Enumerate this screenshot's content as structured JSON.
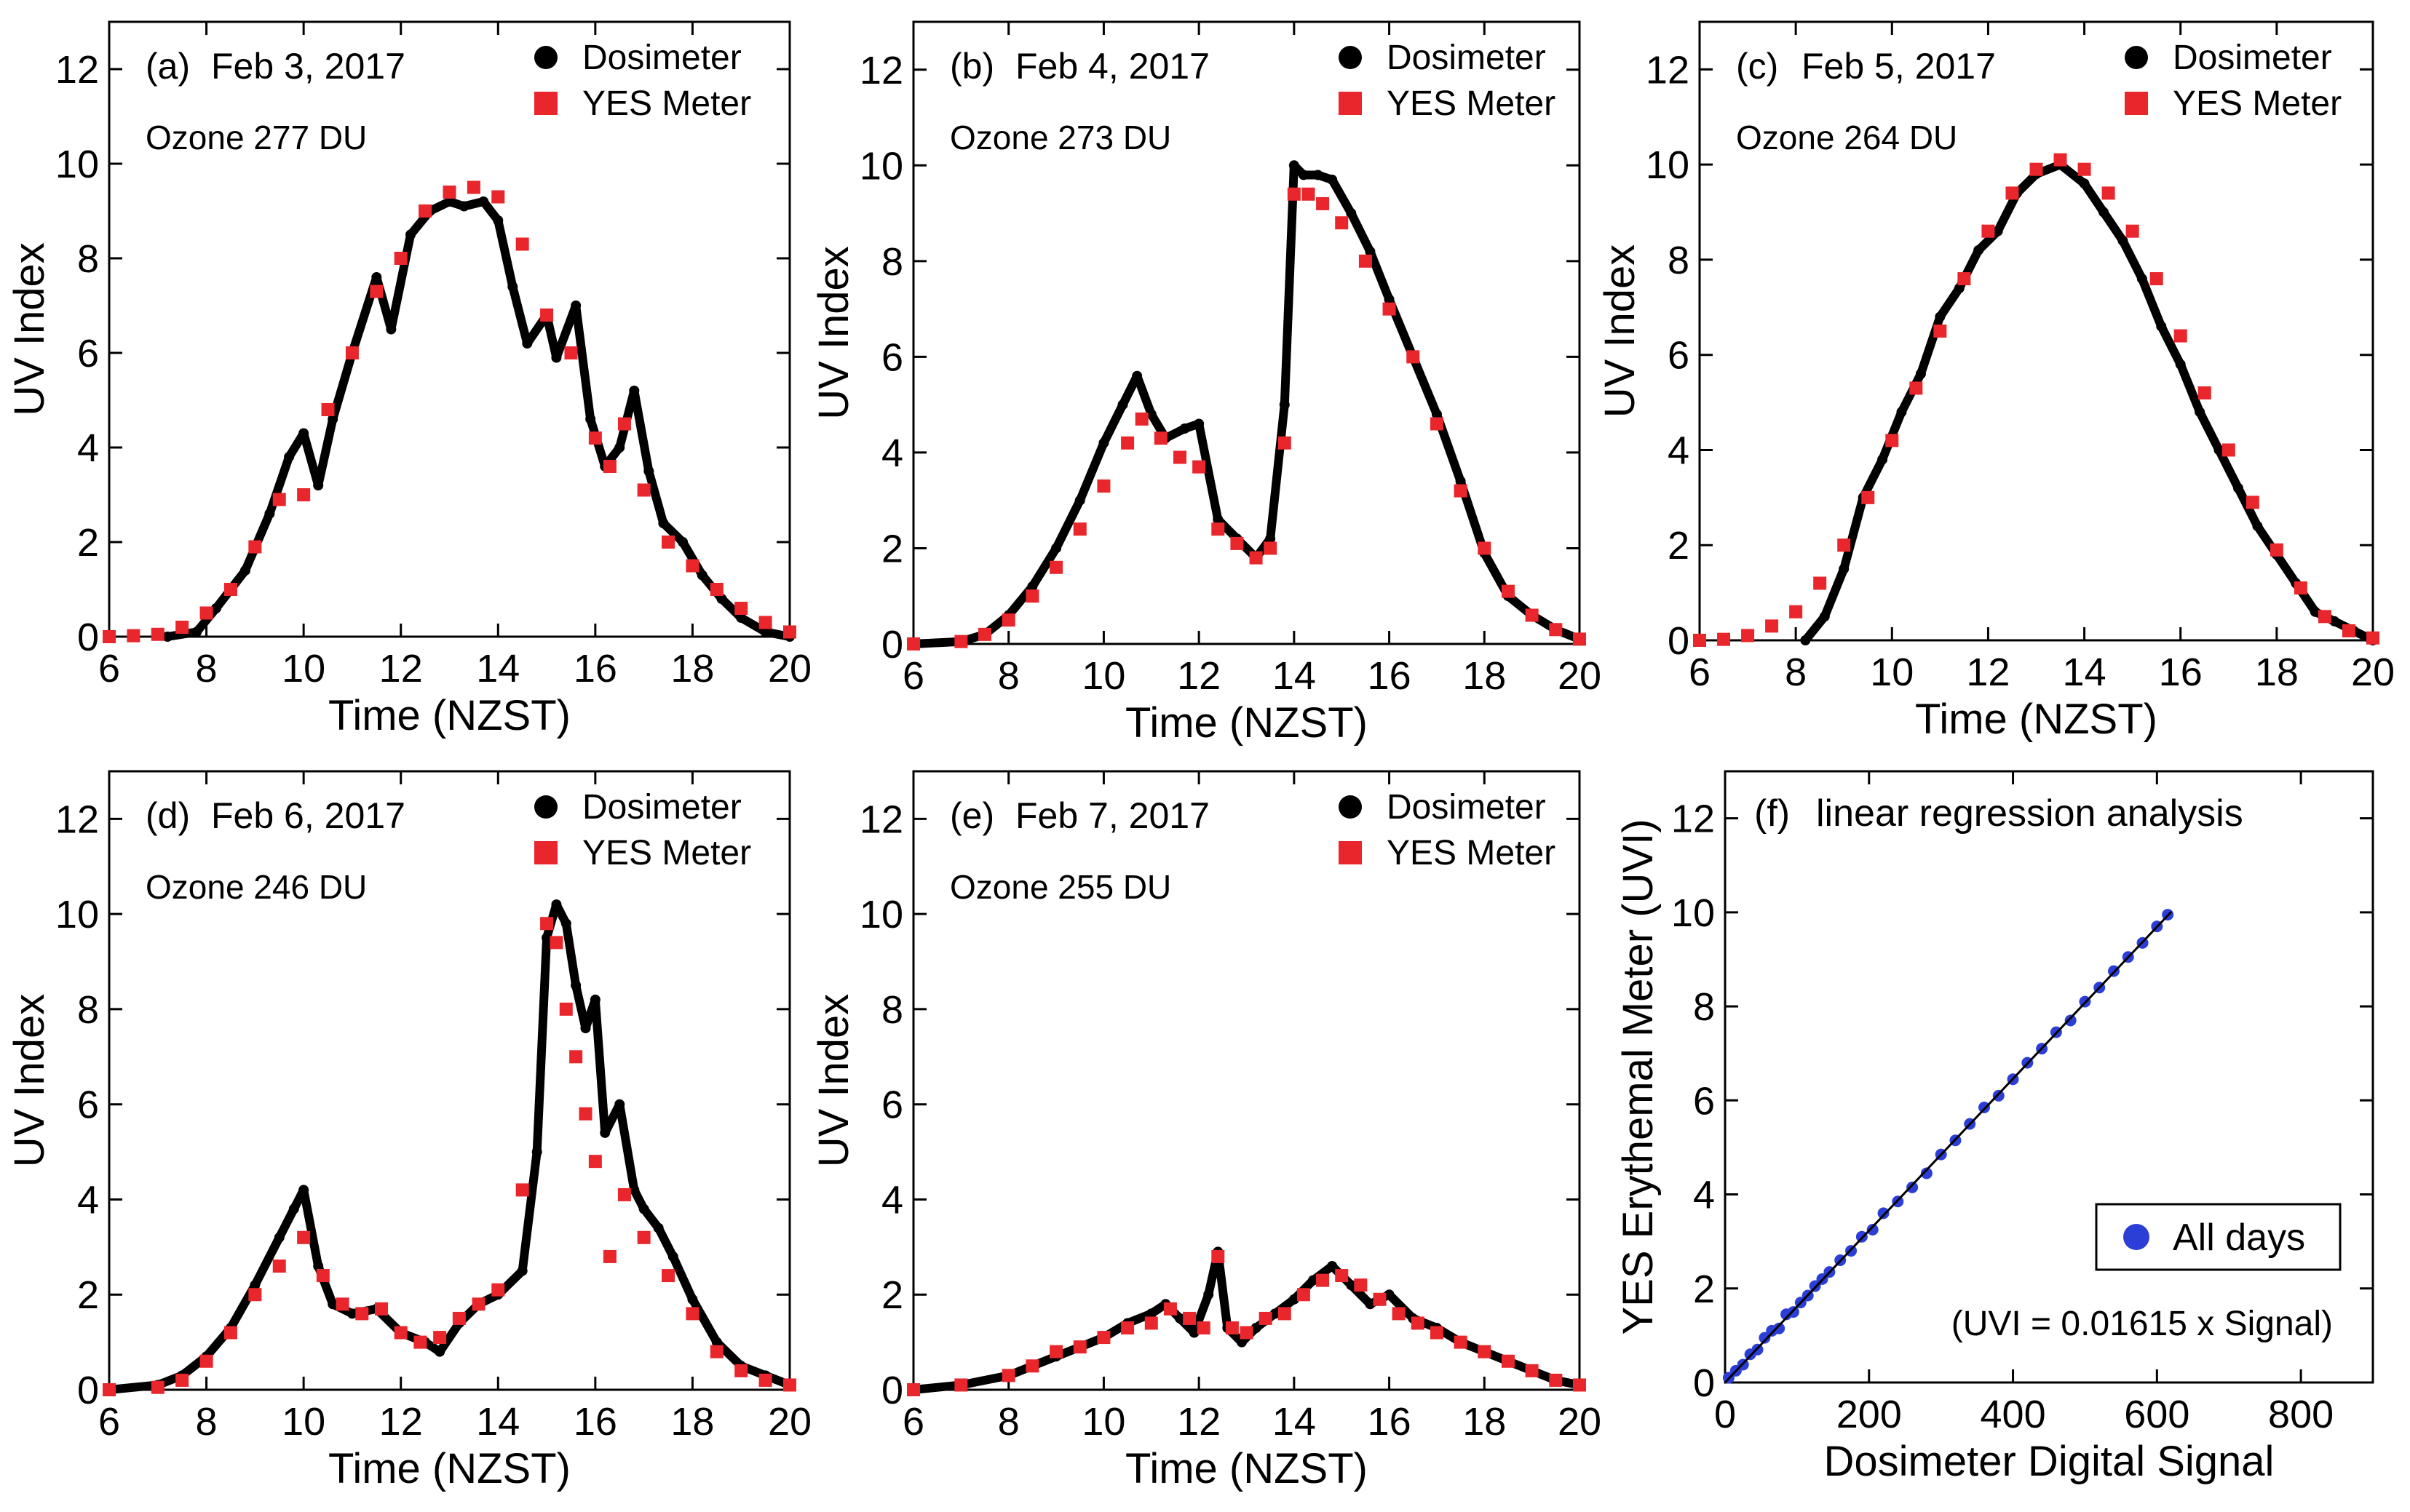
{
  "chart_data": [
    {
      "type": "scatter",
      "panel_label": "(a)",
      "date": "Feb 3, 2017",
      "ozone": "Ozone 277 DU",
      "xlabel": "Time (NZST)",
      "ylabel": "UV Index",
      "xlim": [
        6,
        20
      ],
      "ylim": [
        0,
        13
      ],
      "xticks": [
        6,
        8,
        10,
        12,
        14,
        16,
        18,
        20
      ],
      "yticks": [
        0,
        2,
        4,
        6,
        8,
        10,
        12
      ],
      "legend": [
        "Dosimeter",
        "YES Meter"
      ],
      "series": [
        {
          "name": "Dosimeter",
          "x": [
            7.2,
            7.8,
            8.2,
            8.8,
            9.3,
            9.7,
            10.0,
            10.3,
            10.6,
            11.0,
            11.5,
            11.8,
            12.2,
            12.6,
            13.0,
            13.3,
            13.7,
            14.0,
            14.3,
            14.6,
            15.0,
            15.2,
            15.6,
            15.9,
            16.2,
            16.5,
            16.8,
            17.1,
            17.4,
            17.8,
            18.2,
            18.6,
            19.0,
            19.5,
            20.0
          ],
          "y": [
            0.0,
            0.1,
            0.6,
            1.4,
            2.6,
            3.8,
            4.3,
            3.2,
            4.6,
            6.0,
            7.6,
            6.5,
            8.5,
            9.0,
            9.2,
            9.1,
            9.2,
            8.8,
            7.4,
            6.2,
            6.8,
            5.9,
            7.0,
            4.6,
            3.6,
            4.0,
            5.2,
            3.5,
            2.4,
            2.0,
            1.3,
            0.8,
            0.4,
            0.1,
            0.0
          ]
        },
        {
          "name": "YES Meter",
          "x": [
            6.0,
            6.5,
            7.0,
            7.5,
            8.0,
            8.5,
            9.0,
            9.5,
            10.0,
            10.5,
            11.0,
            11.5,
            12.0,
            12.5,
            13.0,
            13.5,
            14.0,
            14.5,
            15.0,
            15.5,
            16.0,
            16.3,
            16.6,
            17.0,
            17.5,
            18.0,
            18.5,
            19.0,
            19.5,
            20.0
          ],
          "y": [
            0.0,
            0.02,
            0.05,
            0.2,
            0.5,
            1.0,
            1.9,
            2.9,
            3.0,
            4.8,
            6.0,
            7.3,
            8.0,
            9.0,
            9.4,
            9.5,
            9.3,
            8.3,
            6.8,
            6.0,
            4.2,
            3.6,
            4.5,
            3.1,
            2.0,
            1.5,
            1.0,
            0.6,
            0.3,
            0.1
          ]
        }
      ]
    },
    {
      "type": "scatter",
      "panel_label": "(b)",
      "date": "Feb 4, 2017",
      "ozone": "Ozone 273 DU",
      "xlabel": "Time (NZST)",
      "ylabel": "UV Index",
      "xlim": [
        6,
        20
      ],
      "ylim": [
        0,
        13
      ],
      "xticks": [
        6,
        8,
        10,
        12,
        14,
        16,
        18,
        20
      ],
      "yticks": [
        0,
        2,
        4,
        6,
        8,
        10,
        12
      ],
      "legend": [
        "Dosimeter",
        "YES Meter"
      ],
      "series": [
        {
          "name": "Dosimeter",
          "x": [
            6.0,
            7.0,
            7.5,
            8.0,
            8.5,
            9.0,
            9.5,
            10.0,
            10.4,
            10.7,
            11.0,
            11.3,
            11.7,
            12.0,
            12.4,
            12.8,
            13.2,
            13.5,
            13.8,
            14.0,
            14.2,
            14.5,
            14.8,
            15.2,
            15.6,
            16.0,
            16.5,
            17.0,
            17.5,
            18.0,
            18.5,
            19.0,
            19.5,
            20.0
          ],
          "y": [
            0.0,
            0.05,
            0.2,
            0.6,
            1.2,
            2.0,
            3.0,
            4.2,
            5.0,
            5.6,
            4.8,
            4.3,
            4.5,
            4.6,
            2.6,
            2.2,
            1.8,
            2.2,
            5.0,
            10.0,
            9.8,
            9.8,
            9.7,
            9.0,
            8.2,
            7.2,
            6.0,
            4.8,
            3.4,
            1.9,
            1.0,
            0.6,
            0.3,
            0.1
          ]
        },
        {
          "name": "YES Meter",
          "x": [
            6.0,
            7.0,
            7.5,
            8.0,
            8.5,
            9.0,
            9.5,
            10.0,
            10.5,
            10.8,
            11.2,
            11.6,
            12.0,
            12.4,
            12.8,
            13.2,
            13.5,
            13.8,
            14.0,
            14.3,
            14.6,
            15.0,
            15.5,
            16.0,
            16.5,
            17.0,
            17.5,
            18.0,
            18.5,
            19.0,
            19.5,
            20.0
          ],
          "y": [
            0.0,
            0.05,
            0.2,
            0.5,
            1.0,
            1.6,
            2.4,
            3.3,
            4.2,
            4.7,
            4.3,
            3.9,
            3.7,
            2.4,
            2.1,
            1.8,
            2.0,
            4.2,
            9.4,
            9.4,
            9.2,
            8.8,
            8.0,
            7.0,
            6.0,
            4.6,
            3.2,
            2.0,
            1.1,
            0.6,
            0.3,
            0.1
          ]
        }
      ]
    },
    {
      "type": "scatter",
      "panel_label": "(c)",
      "date": "Feb 5, 2017",
      "ozone": "Ozone 264 DU",
      "xlabel": "Time (NZST)",
      "ylabel": "UV Index",
      "xlim": [
        6,
        20
      ],
      "ylim": [
        0,
        13
      ],
      "xticks": [
        6,
        8,
        10,
        12,
        14,
        16,
        18,
        20
      ],
      "yticks": [
        0,
        2,
        4,
        6,
        8,
        10,
        12
      ],
      "legend": [
        "Dosimeter",
        "YES Meter"
      ],
      "series": [
        {
          "name": "Dosimeter",
          "x": [
            8.2,
            8.6,
            9.0,
            9.4,
            9.8,
            10.2,
            10.6,
            11.0,
            11.4,
            11.8,
            12.2,
            12.6,
            13.0,
            13.5,
            14.0,
            14.4,
            14.8,
            15.2,
            15.6,
            16.0,
            16.4,
            16.8,
            17.2,
            17.6,
            18.0,
            18.4,
            18.8,
            19.2,
            19.6,
            20.0
          ],
          "y": [
            0.0,
            0.5,
            1.5,
            3.0,
            3.8,
            4.8,
            5.6,
            6.8,
            7.4,
            8.2,
            8.6,
            9.4,
            9.8,
            10.0,
            9.6,
            9.0,
            8.4,
            7.6,
            6.6,
            5.8,
            4.8,
            4.0,
            3.2,
            2.4,
            1.8,
            1.2,
            0.6,
            0.4,
            0.2,
            0.0
          ]
        },
        {
          "name": "YES Meter",
          "x": [
            6.0,
            6.5,
            7.0,
            7.5,
            8.0,
            8.5,
            9.0,
            9.5,
            10.0,
            10.5,
            11.0,
            11.5,
            12.0,
            12.5,
            13.0,
            13.5,
            14.0,
            14.5,
            15.0,
            15.5,
            16.0,
            16.5,
            17.0,
            17.5,
            18.0,
            18.5,
            19.0,
            19.5,
            20.0
          ],
          "y": [
            0.0,
            0.02,
            0.1,
            0.3,
            0.6,
            1.2,
            2.0,
            3.0,
            4.2,
            5.3,
            6.5,
            7.6,
            8.6,
            9.4,
            9.9,
            10.1,
            9.9,
            9.4,
            8.6,
            7.6,
            6.4,
            5.2,
            4.0,
            2.9,
            1.9,
            1.1,
            0.5,
            0.2,
            0.05
          ]
        }
      ]
    },
    {
      "type": "scatter",
      "panel_label": "(d)",
      "date": "Feb 6, 2017",
      "ozone": "Ozone 246 DU",
      "xlabel": "Time (NZST)",
      "ylabel": "UV Index",
      "xlim": [
        6,
        20
      ],
      "ylim": [
        0,
        13
      ],
      "xticks": [
        6,
        8,
        10,
        12,
        14,
        16,
        18,
        20
      ],
      "yticks": [
        0,
        2,
        4,
        6,
        8,
        10,
        12
      ],
      "legend": [
        "Dosimeter",
        "YES Meter"
      ],
      "series": [
        {
          "name": "Dosimeter",
          "x": [
            6.0,
            7.0,
            7.5,
            8.0,
            8.5,
            9.0,
            9.5,
            9.8,
            10.0,
            10.3,
            10.6,
            11.0,
            11.5,
            12.0,
            12.5,
            12.8,
            13.2,
            13.6,
            14.0,
            14.5,
            14.8,
            15.0,
            15.2,
            15.4,
            15.6,
            15.8,
            16.0,
            16.2,
            16.5,
            16.8,
            17.0,
            17.3,
            17.6,
            18.0,
            18.5,
            19.0,
            19.5,
            20.0
          ],
          "y": [
            0.0,
            0.1,
            0.3,
            0.7,
            1.3,
            2.2,
            3.2,
            3.8,
            4.2,
            2.6,
            1.8,
            1.6,
            1.7,
            1.2,
            1.0,
            0.8,
            1.4,
            1.8,
            2.0,
            2.5,
            5.0,
            9.5,
            10.2,
            9.8,
            8.5,
            7.6,
            8.2,
            5.4,
            6.0,
            4.2,
            3.8,
            3.4,
            2.8,
            1.9,
            1.0,
            0.5,
            0.3,
            0.1
          ]
        },
        {
          "name": "YES Meter",
          "x": [
            6.0,
            7.0,
            7.5,
            8.0,
            8.5,
            9.0,
            9.5,
            10.0,
            10.4,
            10.8,
            11.2,
            11.6,
            12.0,
            12.4,
            12.8,
            13.2,
            13.6,
            14.0,
            14.5,
            15.0,
            15.2,
            15.4,
            15.6,
            15.8,
            16.0,
            16.3,
            16.6,
            17.0,
            17.5,
            18.0,
            18.5,
            19.0,
            19.5,
            20.0
          ],
          "y": [
            0.0,
            0.05,
            0.2,
            0.6,
            1.2,
            2.0,
            2.6,
            3.2,
            2.4,
            1.8,
            1.6,
            1.7,
            1.2,
            1.0,
            1.1,
            1.5,
            1.8,
            2.1,
            4.2,
            9.8,
            9.4,
            8.0,
            7.0,
            5.8,
            4.8,
            2.8,
            4.1,
            3.2,
            2.4,
            1.6,
            0.8,
            0.4,
            0.2,
            0.1
          ]
        }
      ]
    },
    {
      "type": "scatter",
      "panel_label": "(e)",
      "date": "Feb 7, 2017",
      "ozone": "Ozone 255 DU",
      "xlabel": "Time (NZST)",
      "ylabel": "UV Index",
      "xlim": [
        6,
        20
      ],
      "ylim": [
        0,
        13
      ],
      "xticks": [
        6,
        8,
        10,
        12,
        14,
        16,
        18,
        20
      ],
      "yticks": [
        0,
        2,
        4,
        6,
        8,
        10,
        12
      ],
      "legend": [
        "Dosimeter",
        "YES Meter"
      ],
      "series": [
        {
          "name": "Dosimeter",
          "x": [
            6.0,
            7.0,
            8.0,
            8.5,
            9.0,
            9.5,
            10.0,
            10.5,
            11.0,
            11.3,
            11.6,
            11.9,
            12.2,
            12.4,
            12.6,
            12.9,
            13.2,
            13.6,
            14.0,
            14.4,
            14.8,
            15.2,
            15.6,
            16.0,
            16.5,
            17.0,
            17.5,
            18.0,
            18.5,
            19.0,
            19.5,
            20.0
          ],
          "y": [
            0.0,
            0.1,
            0.3,
            0.5,
            0.7,
            0.9,
            1.1,
            1.4,
            1.6,
            1.8,
            1.5,
            1.2,
            2.0,
            2.9,
            1.3,
            1.0,
            1.3,
            1.6,
            1.9,
            2.3,
            2.6,
            2.2,
            1.8,
            2.0,
            1.5,
            1.3,
            1.0,
            0.8,
            0.6,
            0.4,
            0.2,
            0.1
          ]
        },
        {
          "name": "YES Meter",
          "x": [
            6.0,
            7.0,
            8.0,
            8.5,
            9.0,
            9.5,
            10.0,
            10.5,
            11.0,
            11.4,
            11.8,
            12.1,
            12.4,
            12.7,
            13.0,
            13.4,
            13.8,
            14.2,
            14.6,
            15.0,
            15.4,
            15.8,
            16.2,
            16.6,
            17.0,
            17.5,
            18.0,
            18.5,
            19.0,
            19.5,
            20.0
          ],
          "y": [
            0.0,
            0.1,
            0.3,
            0.5,
            0.8,
            0.9,
            1.1,
            1.3,
            1.4,
            1.7,
            1.5,
            1.3,
            2.8,
            1.3,
            1.2,
            1.5,
            1.6,
            2.0,
            2.3,
            2.4,
            2.2,
            1.9,
            1.6,
            1.4,
            1.2,
            1.0,
            0.8,
            0.6,
            0.4,
            0.2,
            0.1
          ]
        }
      ]
    },
    {
      "type": "scatter",
      "panel_label": "(f)",
      "title": "linear regression analysis",
      "xlabel": "Dosimeter Digital Signal",
      "ylabel": "YES Erythemal Meter (UVI)",
      "xlim": [
        0,
        900
      ],
      "ylim": [
        0,
        13
      ],
      "xticks": [
        0,
        200,
        400,
        600,
        800
      ],
      "yticks": [
        0,
        2,
        4,
        6,
        8,
        10,
        12
      ],
      "legend": [
        "All days"
      ],
      "annotation": "(UVI = 0.01615 x Signal)",
      "fit": {
        "slope": 0.01615,
        "x_range": [
          0,
          620
        ]
      },
      "series": [
        {
          "name": "All days",
          "x": [
            5,
            15,
            25,
            35,
            45,
            55,
            65,
            75,
            85,
            95,
            105,
            115,
            125,
            135,
            145,
            160,
            175,
            190,
            205,
            220,
            240,
            260,
            280,
            300,
            320,
            340,
            360,
            380,
            400,
            420,
            440,
            460,
            480,
            500,
            520,
            540,
            560,
            580,
            600,
            615
          ],
          "y": [
            0.1,
            0.25,
            0.38,
            0.6,
            0.7,
            0.95,
            1.1,
            1.15,
            1.45,
            1.5,
            1.7,
            1.85,
            2.05,
            2.2,
            2.35,
            2.6,
            2.8,
            3.1,
            3.25,
            3.6,
            3.85,
            4.15,
            4.45,
            4.85,
            5.15,
            5.5,
            5.85,
            6.1,
            6.45,
            6.8,
            7.1,
            7.45,
            7.7,
            8.1,
            8.4,
            8.75,
            9.05,
            9.35,
            9.7,
            9.95
          ]
        }
      ]
    }
  ]
}
